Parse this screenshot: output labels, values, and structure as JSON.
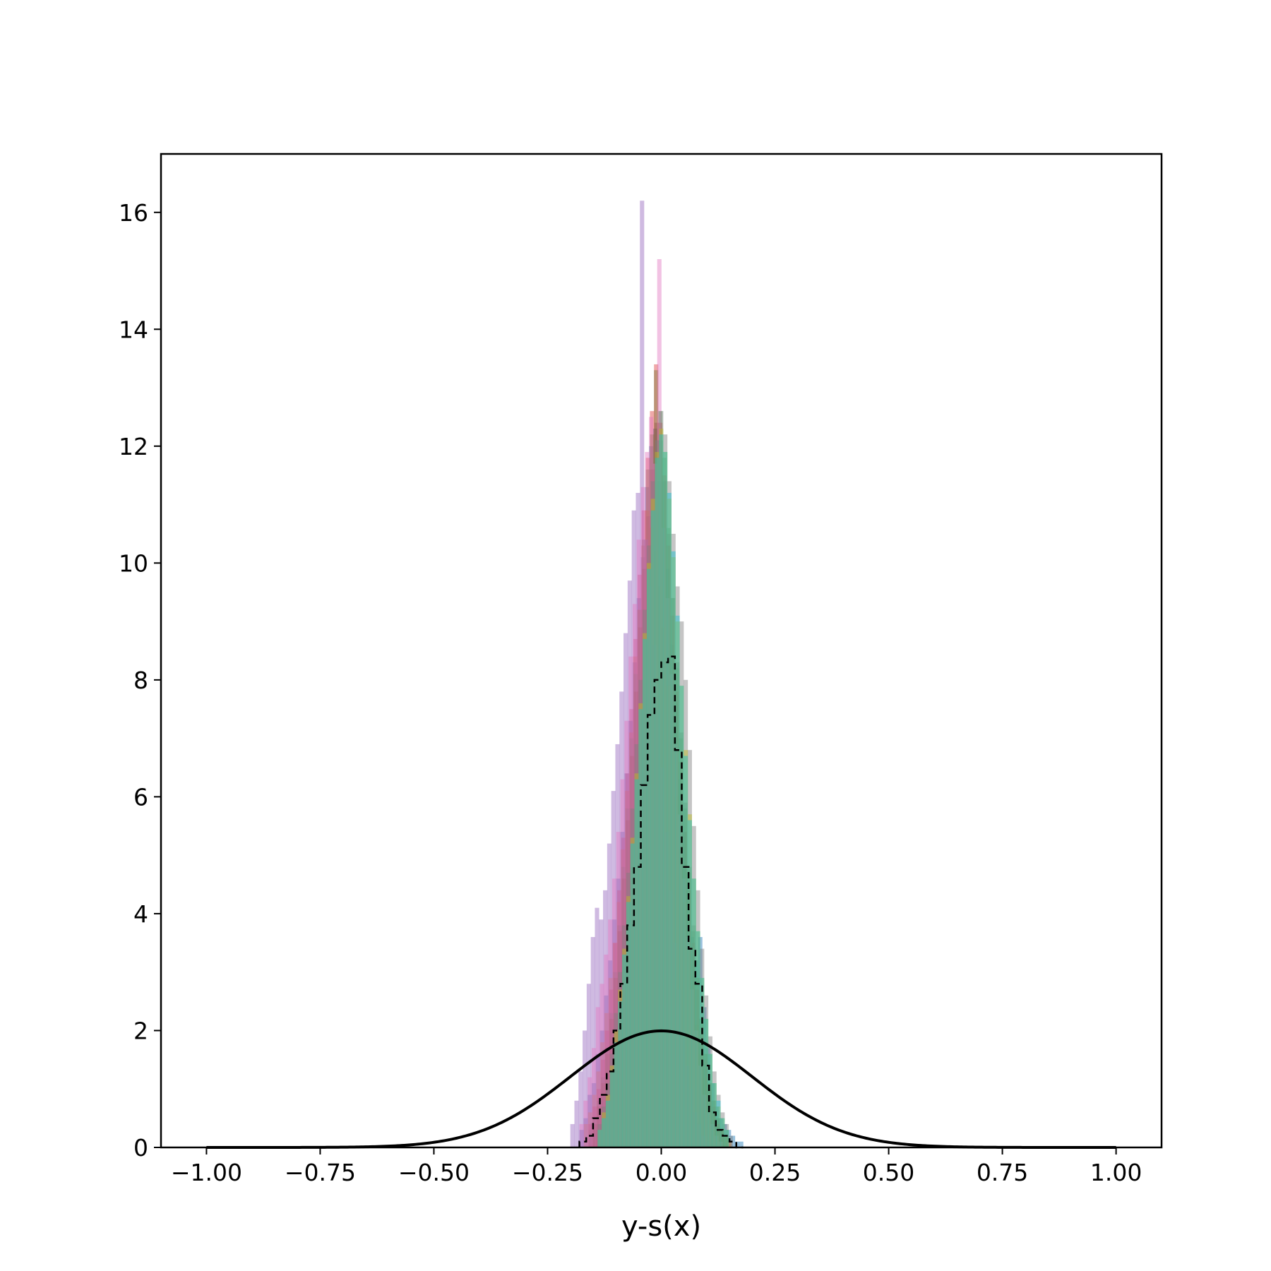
{
  "chart_data": {
    "type": "bar",
    "title": "",
    "xlabel": "y-s(x)",
    "ylabel": "",
    "xlim": [
      -1.1,
      1.1
    ],
    "ylim": [
      0,
      17
    ],
    "x_ticks": [
      -1.0,
      -0.75,
      -0.5,
      -0.25,
      0.0,
      0.25,
      0.5,
      0.75,
      1.0
    ],
    "x_tick_labels": [
      "−1.00",
      "−0.75",
      "−0.50",
      "−0.25",
      "0.00",
      "0.25",
      "0.50",
      "0.75",
      "1.00"
    ],
    "y_ticks": [
      0,
      2,
      4,
      6,
      8,
      10,
      12,
      14,
      16
    ],
    "y_tick_labels": [
      "0",
      "2",
      "4",
      "6",
      "8",
      "10",
      "12",
      "14",
      "16"
    ],
    "grid": false,
    "legend": "none",
    "histograms": [
      {
        "color": "#1f77b4",
        "opacity": 0.45,
        "bin_start": -0.18,
        "bin_width": 0.009,
        "values": [
          0.3,
          0.5,
          0.9,
          1.1,
          1.6,
          2.0,
          2.6,
          3.2,
          3.9,
          4.6,
          5.4,
          6.4,
          7.3,
          8.3,
          9.4,
          10.1,
          11.3,
          12.0,
          12.3,
          11.4,
          10.6,
          9.9,
          8.6,
          7.6,
          6.3,
          5.4,
          4.4,
          3.6,
          3.2,
          3.6,
          2.4,
          1.7,
          1.1,
          0.7,
          0.5,
          0.4,
          0.3,
          0.2,
          0.1,
          0.1
        ]
      },
      {
        "color": "#ff7f0e",
        "opacity": 0.45,
        "bin_start": -0.17,
        "bin_width": 0.009,
        "values": [
          0.4,
          0.6,
          0.9,
          1.3,
          1.8,
          2.3,
          2.9,
          3.5,
          4.2,
          5.1,
          6.1,
          7.1,
          8.4,
          9.2,
          10.3,
          10.9,
          10.6,
          10.2,
          9.6,
          8.9,
          7.9,
          6.9,
          6.0,
          5.1,
          4.2,
          3.4,
          2.7,
          2.1,
          1.6,
          1.2,
          0.9,
          0.6,
          0.4,
          0.3,
          0.2,
          0.1
        ]
      },
      {
        "color": "#2ca02c",
        "opacity": 0.4,
        "bin_start": -0.16,
        "bin_width": 0.009,
        "values": [
          0.3,
          0.5,
          0.8,
          1.2,
          1.7,
          2.3,
          3.0,
          3.8,
          4.8,
          5.8,
          7.0,
          8.1,
          9.2,
          10.4,
          11.6,
          12.2,
          13.3,
          12.6,
          11.8,
          10.6,
          9.4,
          8.2,
          7.0,
          5.8,
          4.7,
          3.7,
          2.9,
          2.2,
          1.6,
          1.1,
          0.8,
          0.5,
          0.3,
          0.2
        ]
      },
      {
        "color": "#d62728",
        "opacity": 0.4,
        "bin_start": -0.16,
        "bin_width": 0.009,
        "values": [
          0.4,
          0.7,
          1.0,
          1.5,
          2.0,
          2.7,
          3.5,
          4.4,
          5.3,
          6.4,
          7.5,
          8.7,
          9.8,
          10.9,
          11.8,
          12.6,
          13.4,
          12.4,
          11.5,
          10.3,
          9.1,
          7.8,
          6.6,
          5.4,
          4.4,
          3.5,
          2.7,
          2.0,
          1.5,
          1.0,
          0.7,
          0.4,
          0.3,
          0.2
        ]
      },
      {
        "color": "#9467bd",
        "opacity": 0.45,
        "bin_start": -0.2,
        "bin_width": 0.009,
        "values": [
          0.4,
          0.8,
          1.3,
          2.0,
          2.8,
          3.6,
          4.1,
          3.9,
          4.4,
          5.2,
          6.1,
          6.9,
          7.8,
          8.8,
          9.7,
          10.9,
          11.2,
          16.2,
          10.4,
          9.6,
          8.6,
          7.5,
          6.5,
          5.4,
          4.4,
          3.5,
          2.7,
          2.0,
          1.4,
          1.0,
          0.6,
          0.4,
          0.2,
          0.1
        ]
      },
      {
        "color": "#8c564b",
        "opacity": 0.4,
        "bin_start": -0.15,
        "bin_width": 0.009,
        "values": [
          0.4,
          0.7,
          1.1,
          1.6,
          2.2,
          2.9,
          3.7,
          4.6,
          5.6,
          6.7,
          7.8,
          8.9,
          9.9,
          10.8,
          11.6,
          12.4,
          12.1,
          11.4,
          10.5,
          9.4,
          8.3,
          7.1,
          5.9,
          4.8,
          3.8,
          2.9,
          2.2,
          1.6,
          1.1,
          0.8,
          0.5,
          0.3
        ]
      },
      {
        "color": "#e377c2",
        "opacity": 0.45,
        "bin_start": -0.18,
        "bin_width": 0.009,
        "values": [
          0.4,
          0.8,
          1.2,
          1.7,
          2.4,
          2.8,
          3.3,
          3.9,
          4.6,
          5.4,
          6.3,
          7.3,
          8.4,
          9.3,
          10.4,
          11.3,
          11.9,
          12.5,
          11.7,
          15.2,
          10.6,
          9.4,
          8.1,
          6.9,
          5.7,
          4.6,
          3.6,
          2.7,
          2.0,
          1.4,
          0.9,
          0.6,
          0.4,
          0.2,
          0.1
        ]
      },
      {
        "color": "#7f7f7f",
        "opacity": 0.45,
        "bin_start": -0.14,
        "bin_width": 0.009,
        "values": [
          0.4,
          0.7,
          1.1,
          1.6,
          2.3,
          3.0,
          3.8,
          4.7,
          5.8,
          6.9,
          8.0,
          9.2,
          10.3,
          11.4,
          12.1,
          12.6,
          12.2,
          11.4,
          10.5,
          9.6,
          9.0,
          8.0,
          6.8,
          5.5,
          4.4,
          3.4,
          2.6,
          1.9,
          1.3,
          0.9,
          0.6,
          0.4,
          0.2
        ]
      },
      {
        "color": "#bcbd22",
        "opacity": 0.45,
        "bin_start": -0.14,
        "bin_width": 0.009,
        "values": [
          0.3,
          0.6,
          0.9,
          1.4,
          2.0,
          2.7,
          3.4,
          4.3,
          5.3,
          6.4,
          7.6,
          8.8,
          10.0,
          11.1,
          11.9,
          12.3,
          11.9,
          11.1,
          10.1,
          9.0,
          7.9,
          6.8,
          5.7,
          4.6,
          3.7,
          2.9,
          2.2,
          1.6,
          1.1,
          0.7,
          0.5,
          0.3
        ]
      },
      {
        "color": "#17becf",
        "opacity": 0.45,
        "bin_start": -0.14,
        "bin_width": 0.009,
        "values": [
          0.3,
          0.5,
          0.8,
          1.3,
          1.8,
          2.5,
          3.3,
          4.2,
          5.2,
          6.3,
          7.5,
          8.7,
          9.9,
          10.9,
          11.8,
          12.2,
          11.9,
          11.2,
          10.2,
          9.1,
          7.9,
          6.7,
          5.6,
          4.6,
          3.7,
          2.9,
          2.2,
          1.6,
          1.1,
          0.8,
          0.5,
          0.3
        ]
      }
    ],
    "reference_histogram": {
      "style": "step-dashed",
      "color": "#000000",
      "bin_edges": [
        -0.18,
        -0.165,
        -0.15,
        -0.135,
        -0.12,
        -0.105,
        -0.09,
        -0.075,
        -0.06,
        -0.045,
        -0.03,
        -0.015,
        0.0,
        0.015,
        0.03,
        0.045,
        0.06,
        0.075,
        0.09,
        0.105,
        0.12,
        0.135,
        0.15,
        0.165,
        0.18
      ],
      "values": [
        0.1,
        0.2,
        0.5,
        0.9,
        1.3,
        2.0,
        2.8,
        3.8,
        4.8,
        6.2,
        7.4,
        8.0,
        8.3,
        8.4,
        6.8,
        4.8,
        3.4,
        2.8,
        1.4,
        0.6,
        0.3,
        0.2,
        0.1,
        0.0
      ]
    },
    "curve": {
      "type": "normal-pdf",
      "color": "#000000",
      "mean": 0.0,
      "sd": 0.2,
      "x_range": [
        -1.0,
        1.0
      ]
    }
  }
}
